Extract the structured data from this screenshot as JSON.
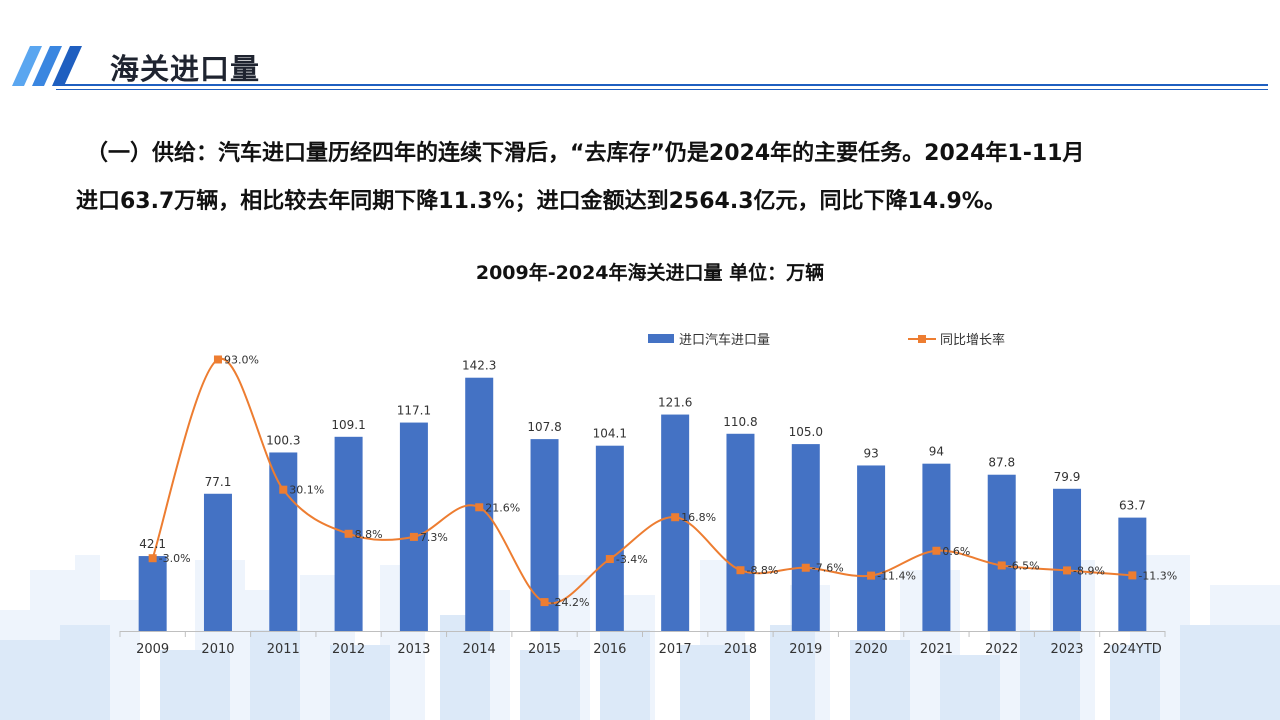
{
  "header": {
    "title": "海关进口量"
  },
  "description": {
    "line1": "（一）供给：汽车进口量历经四年的连续下滑后，“去库存”仍是2024年的主要任务。2024年1-11月",
    "line2": "进口63.7万辆，相比较去年同期下降11.3%；进口金额达到2564.3亿元，同比下降14.9%。"
  },
  "chart_data": {
    "type": "bar",
    "title": "2009年-2024年海关进口量  单位：万辆",
    "categories": [
      "2009",
      "2010",
      "2011",
      "2012",
      "2013",
      "2014",
      "2015",
      "2016",
      "2017",
      "2018",
      "2019",
      "2020",
      "2021",
      "2022",
      "2023",
      "2024YTD"
    ],
    "series": [
      {
        "name": "进口汽车进口量",
        "type": "bar",
        "color": "#4472c4",
        "values": [
          42.1,
          77.1,
          100.3,
          109.1,
          117.1,
          142.3,
          107.8,
          104.1,
          121.6,
          110.8,
          105.0,
          93,
          94,
          87.8,
          79.9,
          63.7
        ],
        "labels": [
          "42.1",
          "77.1",
          "100.3",
          "109.1",
          "117.1",
          "142.3",
          "107.8",
          "104.1",
          "121.6",
          "110.8",
          "105.0",
          "93",
          "94",
          "87.8",
          "79.9",
          "63.7"
        ]
      },
      {
        "name": "同比增长率",
        "type": "line",
        "color": "#ed7d31",
        "values": [
          -3.0,
          93.0,
          30.1,
          8.8,
          7.3,
          21.6,
          -24.2,
          -3.4,
          16.8,
          -8.8,
          -7.6,
          -11.4,
          0.6,
          -6.5,
          -8.9,
          -11.3
        ],
        "labels": [
          "-3.0%",
          "93.0%",
          "30.1%",
          "8.8%",
          "7.3%",
          "21.6%",
          "-24.2%",
          "-3.4%",
          "16.8%",
          "-8.8%",
          "-7.6%",
          "-11.4%",
          "0.6%",
          "-6.5%",
          "-8.9%",
          "-11.3%"
        ]
      }
    ],
    "legend_position": "top",
    "grid": false
  }
}
